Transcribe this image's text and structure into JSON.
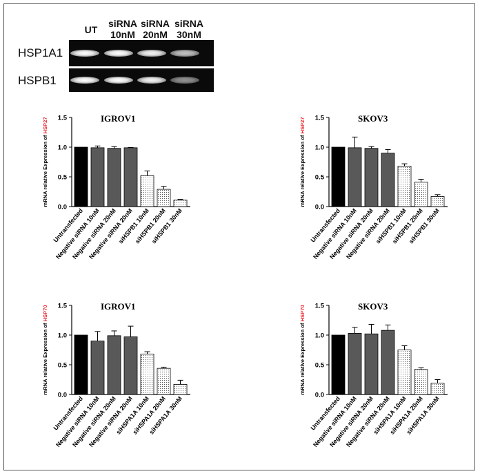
{
  "gel": {
    "lane_labels": [
      "UT",
      "siRNA\n10nM",
      "siRNA\n20nM",
      "siRNA\n30nM"
    ],
    "rows": [
      {
        "label": "HSP1A1",
        "band_intensity": [
          1.0,
          1.0,
          0.95,
          0.75
        ]
      },
      {
        "label": "HSPB1",
        "band_intensity": [
          1.0,
          1.0,
          0.95,
          0.55
        ]
      }
    ]
  },
  "chart_data": [
    {
      "type": "bar",
      "title": "IGROV1",
      "ylabel_prefix": "mRNA relative Expression of ",
      "ylabel_highlight": "HSP27",
      "ylim": [
        0,
        1.5
      ],
      "yticks": [
        "0.0",
        "0.5",
        "1.0",
        "1.5"
      ],
      "categories": [
        "Untransfected",
        "Negative siRNA 10nM",
        "Negative siRNA 20nM",
        "Negative siRNA 20nM",
        "siHSPB1 10nM",
        "siHSPB1 20nM",
        "siHSPB1 30nM"
      ],
      "values": [
        1.0,
        0.99,
        0.98,
        0.99,
        0.52,
        0.29,
        0.11
      ],
      "errors": [
        0,
        0.03,
        0.03,
        0.005,
        0.08,
        0.05,
        0.01
      ],
      "styles": [
        "black",
        "gray",
        "gray",
        "gray",
        "dotted",
        "dotted",
        "dotted"
      ]
    },
    {
      "type": "bar",
      "title": "SKOV3",
      "ylabel_prefix": "mRNA relative Expression of ",
      "ylabel_highlight": "HSP27",
      "ylim": [
        0,
        1.5
      ],
      "yticks": [
        "0.0",
        "0.5",
        "1.0",
        "1.5"
      ],
      "categories": [
        "Untransfected",
        "Negative siRNA 10nM",
        "Negative siRNA 20nM",
        "Negative siRNA 20nM",
        "siHSPB1 10nM",
        "siHSPB1 20nM",
        "siHSPB1 30nM"
      ],
      "values": [
        1.0,
        0.99,
        0.98,
        0.9,
        0.68,
        0.41,
        0.17
      ],
      "errors": [
        0,
        0.18,
        0.03,
        0.06,
        0.04,
        0.05,
        0.03
      ],
      "styles": [
        "black",
        "gray",
        "gray",
        "gray",
        "dotted",
        "dotted",
        "dotted"
      ]
    },
    {
      "type": "bar",
      "title": "IGROV1",
      "ylabel_prefix": "mRNA relative Expression of ",
      "ylabel_highlight": "HSP70",
      "ylim": [
        0,
        1.5
      ],
      "yticks": [
        "0.0",
        "0.5",
        "1.0",
        "1.5"
      ],
      "categories": [
        "Untransfected",
        "Negative siRNA 10nM",
        "Negative siRNA 20nM",
        "Negative siRNA 20nM",
        "siHSPA1A 10nM",
        "siHSPA1A 20nM",
        "siHSPA1A 30nM"
      ],
      "values": [
        1.0,
        0.9,
        0.99,
        0.97,
        0.68,
        0.44,
        0.17
      ],
      "errors": [
        0,
        0.16,
        0.08,
        0.18,
        0.04,
        0.02,
        0.07
      ],
      "styles": [
        "black",
        "gray",
        "gray",
        "gray",
        "dotted",
        "dotted",
        "dotted"
      ]
    },
    {
      "type": "bar",
      "title": "SKOV3",
      "ylabel_prefix": "mRNA relative Expression of ",
      "ylabel_highlight": "HSP70",
      "ylim": [
        0,
        1.5
      ],
      "yticks": [
        "0.0",
        "0.5",
        "1.0",
        "1.5"
      ],
      "categories": [
        "Untransfected",
        "Negative siRNA 10nM",
        "Negative siRNA 20nM",
        "Negative siRNA 20nM",
        "siHSPA1A 10nM",
        "siHSPA1A 20nM",
        "siHSPA1A 30nM"
      ],
      "values": [
        1.0,
        1.03,
        1.02,
        1.08,
        0.75,
        0.42,
        0.19
      ],
      "errors": [
        0,
        0.1,
        0.16,
        0.09,
        0.07,
        0.03,
        0.06
      ],
      "styles": [
        "black",
        "gray",
        "gray",
        "gray",
        "dotted",
        "dotted",
        "dotted"
      ]
    }
  ],
  "colors": {
    "black_bar": "#000000",
    "gray_bar": "#595959",
    "highlight": "#e8242b",
    "axis": "#000000"
  }
}
